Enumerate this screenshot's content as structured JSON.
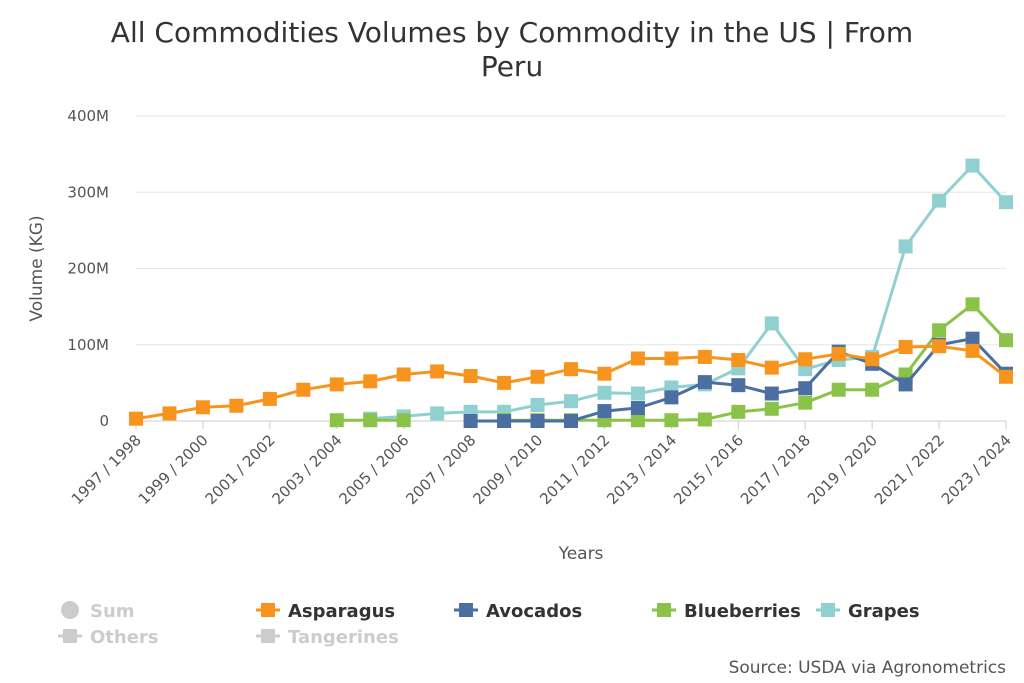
{
  "chart_data": {
    "type": "line",
    "title": "All Commodities Volumes by Commodity in the US | From Peru",
    "title_lines": [
      "All Commodities Volumes by Commodity in the US | From",
      "Peru"
    ],
    "xlabel": "Years",
    "ylabel": "Volume (KG)",
    "ylim": [
      0,
      400000000
    ],
    "y_ticks": [
      0,
      100000000,
      200000000,
      300000000,
      400000000
    ],
    "y_tick_labels": [
      "0",
      "100M",
      "200M",
      "300M",
      "400M"
    ],
    "grid": "horizontal",
    "legend_placement": "bottom",
    "categories": [
      "1997 / 1998",
      "1998 / 1999",
      "1999 / 2000",
      "2000 / 2001",
      "2001 / 2002",
      "2002 / 2003",
      "2003 / 2004",
      "2004 / 2005",
      "2005 / 2006",
      "2006 / 2007",
      "2007 / 2008",
      "2008 / 2009",
      "2009 / 2010",
      "2010 / 2011",
      "2011 / 2012",
      "2012 / 2013",
      "2013 / 2014",
      "2014 / 2015",
      "2015 / 2016",
      "2016 / 2017",
      "2017 / 2018",
      "2018 / 2019",
      "2019 / 2020",
      "2020 / 2021",
      "2021 / 2022",
      "2022 / 2023",
      "2023 / 2024"
    ],
    "x_tick_labels": [
      "1997 / 1998",
      "1999 / 2000",
      "2001 / 2002",
      "2003 / 2004",
      "2005 / 2006",
      "2007 / 2008",
      "2009 / 2010",
      "2011 / 2012",
      "2013 / 2014",
      "2015 / 2016",
      "2017 / 2018",
      "2019 / 2020",
      "2021 / 2022",
      "2023 / 2024"
    ],
    "series": [
      {
        "name": "Grapes",
        "color": "#91d0d0",
        "values": [
          null,
          null,
          null,
          null,
          null,
          null,
          null,
          3000000,
          6000000,
          10000000,
          12000000,
          12000000,
          21000000,
          26000000,
          37000000,
          36000000,
          44000000,
          48000000,
          69000000,
          128000000,
          68000000,
          80000000,
          84000000,
          229000000,
          289000000,
          335000000,
          287000000
        ]
      },
      {
        "name": "Blueberries",
        "color": "#8bc34a",
        "values": [
          null,
          null,
          null,
          null,
          null,
          null,
          1000000,
          1000000,
          1000000,
          null,
          null,
          1000000,
          1000000,
          1000000,
          1000000,
          1000000,
          1000000,
          2000000,
          12000000,
          16000000,
          24000000,
          41000000,
          41000000,
          61000000,
          119000000,
          153000000,
          106000000
        ]
      },
      {
        "name": "Avocados",
        "color": "#4a6fa0",
        "values": [
          null,
          null,
          null,
          null,
          null,
          null,
          null,
          null,
          null,
          null,
          0,
          0,
          0,
          0,
          13000000,
          17000000,
          31000000,
          51000000,
          47000000,
          36000000,
          43000000,
          91000000,
          75000000,
          48000000,
          100000000,
          108000000,
          62000000
        ]
      },
      {
        "name": "Asparagus",
        "color": "#f7941d",
        "values": [
          3000000,
          10000000,
          18000000,
          20000000,
          29000000,
          41000000,
          48000000,
          52000000,
          61000000,
          65000000,
          59000000,
          50000000,
          58000000,
          68000000,
          62000000,
          82000000,
          82000000,
          84000000,
          80000000,
          70000000,
          81000000,
          88000000,
          81000000,
          97000000,
          98000000,
          92000000,
          58000000
        ]
      }
    ],
    "legend": [
      {
        "label": "Sum",
        "marker": "circle",
        "color": "#cccccc",
        "text_color": "#cccccc",
        "hidden": true
      },
      {
        "label": "Asparagus",
        "marker": "square",
        "color": "#f7941d",
        "text_color": "#333333",
        "hidden": false
      },
      {
        "label": "Avocados",
        "marker": "square",
        "color": "#4a6fa0",
        "text_color": "#333333",
        "hidden": false
      },
      {
        "label": "Blueberries",
        "marker": "square",
        "color": "#8bc34a",
        "text_color": "#333333",
        "hidden": false
      },
      {
        "label": "Grapes",
        "marker": "square",
        "color": "#91d0d0",
        "text_color": "#333333",
        "hidden": false
      },
      {
        "label": "Others",
        "marker": "square",
        "color": "#cccccc",
        "text_color": "#cccccc",
        "hidden": true
      },
      {
        "label": "Tangerines",
        "marker": "square",
        "color": "#cccccc",
        "text_color": "#cccccc",
        "hidden": true
      }
    ],
    "source": "Source: USDA via Agronometrics"
  }
}
